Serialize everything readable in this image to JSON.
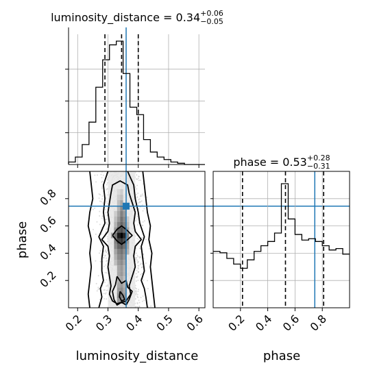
{
  "chart_data": {
    "type": "corner",
    "colors": {
      "truth": "#1f77b4",
      "hist": "#000000",
      "grid": "#b0b0b0"
    },
    "parameters": [
      {
        "name": "luminosity_distance",
        "label": "luminosity_distance",
        "title": {
          "prefix": "luminosity_distance = 0.34",
          "plus": "+0.06",
          "minus": "−0.05"
        },
        "range": [
          0.17,
          0.62
        ],
        "ticks": [
          0.2,
          0.3,
          0.4,
          0.5,
          0.6
        ],
        "tick_labels": [
          "0.2",
          "0.3",
          "0.4",
          "0.5",
          "0.6"
        ],
        "quantiles": [
          0.29,
          0.345,
          0.4
        ],
        "truth": 0.36,
        "histogram": {
          "edges": [
            0.17,
            0.1925,
            0.215,
            0.2375,
            0.26,
            0.2825,
            0.305,
            0.3275,
            0.35,
            0.3725,
            0.395,
            0.4175,
            0.44,
            0.4625,
            0.485,
            0.5075,
            0.53,
            0.5525,
            0.575,
            0.5975,
            0.62
          ],
          "counts": [
            2,
            6,
            16,
            34,
            62,
            84,
            96,
            99,
            73,
            46,
            40,
            20,
            10,
            6,
            4,
            2,
            1,
            0,
            0,
            0
          ]
        }
      },
      {
        "name": "phase",
        "label": "phase",
        "title": {
          "prefix": "phase = 0.53",
          "plus": "+0.28",
          "minus": "−0.31"
        },
        "range": [
          0.0,
          1.0
        ],
        "ticks": [
          0.2,
          0.4,
          0.6,
          0.8
        ],
        "tick_labels": [
          "0.2",
          "0.4",
          "0.6",
          "0.8"
        ],
        "quantiles": [
          0.215,
          0.53,
          0.81
        ],
        "truth": 0.745,
        "histogram": {
          "edges": [
            0.0,
            0.05,
            0.1,
            0.15,
            0.2,
            0.25,
            0.3,
            0.35,
            0.4,
            0.45,
            0.5,
            0.55,
            0.6,
            0.65,
            0.7,
            0.75,
            0.8,
            0.85,
            0.9,
            0.95,
            1.0
          ],
          "counts": [
            40,
            39,
            35,
            31,
            28,
            34,
            40,
            44,
            47,
            53,
            88,
            63,
            52,
            48,
            49,
            47,
            44,
            41,
            42,
            38
          ]
        }
      }
    ],
    "joint": {
      "x": "luminosity_distance",
      "y": "phase",
      "truth_point": [
        0.36,
        0.745
      ],
      "contours": [
        [
          [
            0.33,
            0.03
          ],
          [
            0.36,
            0.05
          ],
          [
            0.375,
            0.1
          ],
          [
            0.37,
            0.16
          ],
          [
            0.38,
            0.23
          ],
          [
            0.39,
            0.3
          ],
          [
            0.385,
            0.38
          ],
          [
            0.39,
            0.45
          ],
          [
            0.41,
            0.5
          ],
          [
            0.39,
            0.56
          ],
          [
            0.385,
            0.62
          ],
          [
            0.39,
            0.7
          ],
          [
            0.38,
            0.77
          ],
          [
            0.37,
            0.84
          ],
          [
            0.365,
            0.9
          ],
          [
            0.34,
            0.93
          ],
          [
            0.315,
            0.9
          ],
          [
            0.31,
            0.84
          ],
          [
            0.305,
            0.77
          ],
          [
            0.3,
            0.7
          ],
          [
            0.305,
            0.62
          ],
          [
            0.3,
            0.56
          ],
          [
            0.28,
            0.5
          ],
          [
            0.3,
            0.45
          ],
          [
            0.305,
            0.38
          ],
          [
            0.3,
            0.3
          ],
          [
            0.305,
            0.23
          ],
          [
            0.31,
            0.16
          ],
          [
            0.305,
            0.1
          ],
          [
            0.315,
            0.05
          ],
          [
            0.33,
            0.03
          ]
        ],
        [
          [
            0.365,
            1.0
          ],
          [
            0.385,
            0.9
          ],
          [
            0.39,
            0.8
          ],
          [
            0.4,
            0.7
          ],
          [
            0.405,
            0.62
          ],
          [
            0.42,
            0.52
          ],
          [
            0.41,
            0.45
          ],
          [
            0.415,
            0.36
          ],
          [
            0.42,
            0.27
          ],
          [
            0.41,
            0.2
          ],
          [
            0.42,
            0.14
          ],
          [
            0.425,
            0.08
          ],
          [
            0.43,
            0.0
          ]
        ],
        [
          [
            0.3,
            1.0
          ],
          [
            0.285,
            0.9
          ],
          [
            0.29,
            0.8
          ],
          [
            0.285,
            0.7
          ],
          [
            0.29,
            0.62
          ],
          [
            0.27,
            0.52
          ],
          [
            0.285,
            0.45
          ],
          [
            0.28,
            0.36
          ],
          [
            0.28,
            0.27
          ],
          [
            0.285,
            0.2
          ],
          [
            0.275,
            0.14
          ],
          [
            0.28,
            0.08
          ],
          [
            0.27,
            0.0
          ]
        ],
        [
          [
            0.415,
            1.0
          ],
          [
            0.42,
            0.9
          ],
          [
            0.425,
            0.8
          ],
          [
            0.43,
            0.7
          ],
          [
            0.44,
            0.6
          ],
          [
            0.435,
            0.5
          ],
          [
            0.445,
            0.4
          ],
          [
            0.44,
            0.3
          ],
          [
            0.445,
            0.2
          ],
          [
            0.45,
            0.1
          ],
          [
            0.455,
            0.0
          ]
        ],
        [
          [
            0.24,
            1.0
          ],
          [
            0.245,
            0.9
          ],
          [
            0.25,
            0.8
          ],
          [
            0.24,
            0.7
          ],
          [
            0.235,
            0.6
          ],
          [
            0.245,
            0.5
          ],
          [
            0.24,
            0.4
          ],
          [
            0.245,
            0.3
          ],
          [
            0.24,
            0.2
          ],
          [
            0.235,
            0.1
          ],
          [
            0.24,
            0.0
          ]
        ],
        [
          [
            0.315,
            0.53
          ],
          [
            0.33,
            0.49
          ],
          [
            0.345,
            0.465
          ],
          [
            0.36,
            0.49
          ],
          [
            0.38,
            0.53
          ],
          [
            0.36,
            0.575
          ],
          [
            0.345,
            0.6
          ],
          [
            0.33,
            0.575
          ],
          [
            0.315,
            0.53
          ]
        ],
        [
          [
            0.33,
            0.23
          ],
          [
            0.345,
            0.18
          ],
          [
            0.36,
            0.2
          ],
          [
            0.365,
            0.15
          ],
          [
            0.38,
            0.12
          ],
          [
            0.37,
            0.06
          ],
          [
            0.36,
            0.02
          ],
          [
            0.345,
            0.04
          ],
          [
            0.33,
            0.02
          ],
          [
            0.32,
            0.06
          ],
          [
            0.315,
            0.12
          ],
          [
            0.325,
            0.17
          ],
          [
            0.33,
            0.23
          ]
        ],
        [
          [
            0.34,
            0.12
          ],
          [
            0.35,
            0.09
          ],
          [
            0.355,
            0.06
          ],
          [
            0.345,
            0.05
          ],
          [
            0.338,
            0.08
          ],
          [
            0.34,
            0.12
          ]
        ]
      ],
      "density_cells": [
        [
          0.335,
          0.73,
          0.3
        ],
        [
          0.345,
          0.73,
          0.45
        ],
        [
          0.355,
          0.73,
          0.35
        ],
        [
          0.335,
          0.69,
          0.35
        ],
        [
          0.345,
          0.69,
          0.5
        ],
        [
          0.355,
          0.69,
          0.4
        ],
        [
          0.325,
          0.69,
          0.2
        ],
        [
          0.335,
          0.65,
          0.4
        ],
        [
          0.345,
          0.65,
          0.55
        ],
        [
          0.355,
          0.65,
          0.45
        ],
        [
          0.325,
          0.65,
          0.25
        ],
        [
          0.365,
          0.65,
          0.2
        ],
        [
          0.335,
          0.61,
          0.5
        ],
        [
          0.345,
          0.61,
          0.6
        ],
        [
          0.355,
          0.61,
          0.5
        ],
        [
          0.325,
          0.61,
          0.3
        ],
        [
          0.365,
          0.61,
          0.25
        ],
        [
          0.325,
          0.57,
          0.4
        ],
        [
          0.335,
          0.57,
          0.65
        ],
        [
          0.345,
          0.57,
          0.7
        ],
        [
          0.355,
          0.57,
          0.6
        ],
        [
          0.365,
          0.57,
          0.35
        ],
        [
          0.325,
          0.53,
          0.55
        ],
        [
          0.335,
          0.53,
          0.9
        ],
        [
          0.345,
          0.53,
          1.0
        ],
        [
          0.355,
          0.53,
          0.85
        ],
        [
          0.365,
          0.53,
          0.5
        ],
        [
          0.315,
          0.53,
          0.35
        ],
        [
          0.325,
          0.49,
          0.5
        ],
        [
          0.335,
          0.49,
          0.75
        ],
        [
          0.345,
          0.49,
          0.8
        ],
        [
          0.355,
          0.49,
          0.7
        ],
        [
          0.365,
          0.49,
          0.4
        ],
        [
          0.325,
          0.45,
          0.45
        ],
        [
          0.335,
          0.45,
          0.6
        ],
        [
          0.345,
          0.45,
          0.65
        ],
        [
          0.355,
          0.45,
          0.55
        ],
        [
          0.365,
          0.45,
          0.35
        ],
        [
          0.325,
          0.41,
          0.35
        ],
        [
          0.335,
          0.41,
          0.5
        ],
        [
          0.345,
          0.41,
          0.55
        ],
        [
          0.355,
          0.41,
          0.45
        ],
        [
          0.365,
          0.41,
          0.3
        ],
        [
          0.325,
          0.37,
          0.3
        ],
        [
          0.335,
          0.37,
          0.45
        ],
        [
          0.345,
          0.37,
          0.5
        ],
        [
          0.355,
          0.37,
          0.4
        ],
        [
          0.325,
          0.33,
          0.25
        ],
        [
          0.335,
          0.33,
          0.4
        ],
        [
          0.345,
          0.33,
          0.45
        ],
        [
          0.355,
          0.33,
          0.35
        ],
        [
          0.335,
          0.29,
          0.35
        ],
        [
          0.345,
          0.29,
          0.4
        ],
        [
          0.355,
          0.29,
          0.3
        ],
        [
          0.335,
          0.25,
          0.35
        ],
        [
          0.345,
          0.25,
          0.4
        ],
        [
          0.355,
          0.25,
          0.3
        ],
        [
          0.335,
          0.21,
          0.3
        ],
        [
          0.345,
          0.21,
          0.35
        ],
        [
          0.355,
          0.21,
          0.25
        ],
        [
          0.335,
          0.17,
          0.35
        ],
        [
          0.345,
          0.17,
          0.4
        ],
        [
          0.355,
          0.17,
          0.3
        ],
        [
          0.335,
          0.13,
          0.4
        ],
        [
          0.345,
          0.13,
          0.45
        ],
        [
          0.355,
          0.13,
          0.35
        ],
        [
          0.335,
          0.09,
          0.45
        ],
        [
          0.345,
          0.09,
          0.5
        ],
        [
          0.355,
          0.09,
          0.4
        ],
        [
          0.335,
          0.05,
          0.4
        ],
        [
          0.345,
          0.05,
          0.45
        ],
        [
          0.355,
          0.05,
          0.35
        ],
        [
          0.335,
          0.77,
          0.25
        ],
        [
          0.345,
          0.77,
          0.35
        ],
        [
          0.335,
          0.81,
          0.2
        ],
        [
          0.345,
          0.81,
          0.25
        ],
        [
          0.335,
          0.85,
          0.15
        ],
        [
          0.345,
          0.85,
          0.2
        ]
      ],
      "scatter_spread": {
        "center_x": 0.345,
        "half_width_x": 0.105
      }
    }
  }
}
